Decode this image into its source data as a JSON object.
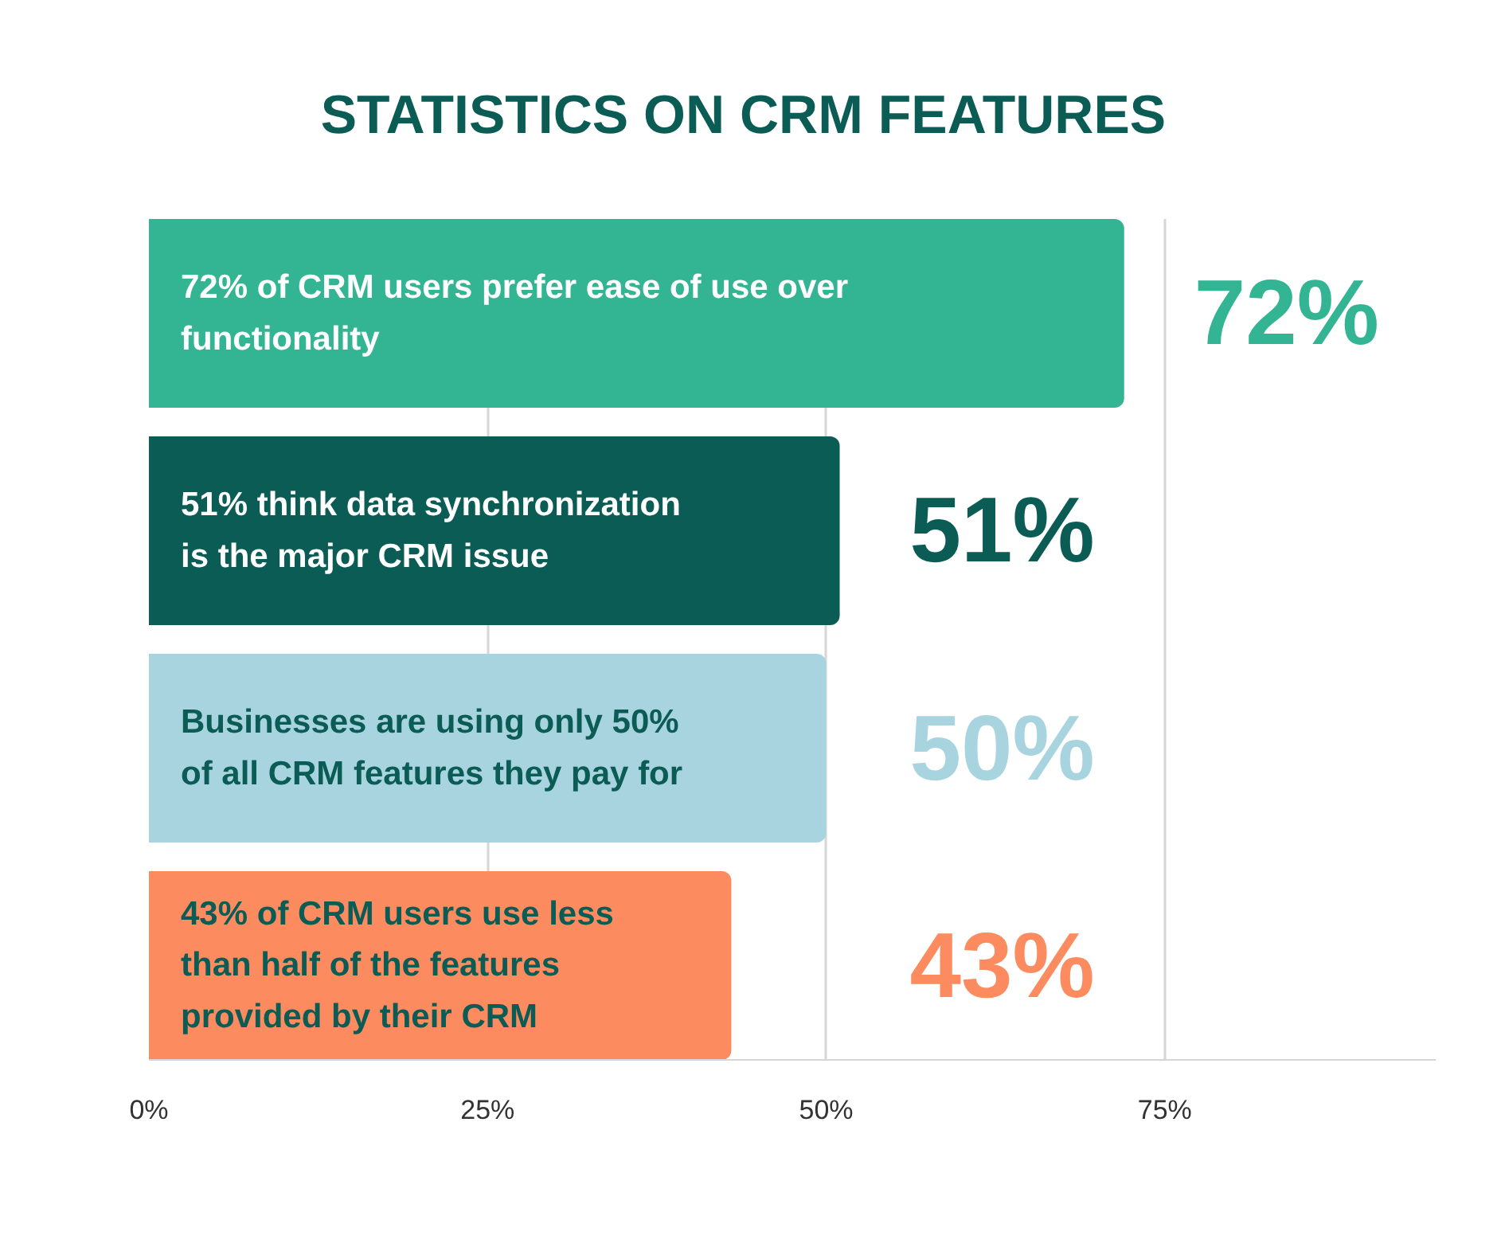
{
  "chart_data": {
    "type": "bar",
    "orientation": "horizontal",
    "title": "STATISTICS ON CRM FEATURES",
    "categories": [
      "72% of CRM users prefer ease of use over\nfunctionality",
      "51% think data synchronization\nis the major CRM issue",
      "Businesses are using only 50%\nof all CRM features they pay for",
      "43% of CRM users use less\nthan half of the features\nprovided by their CRM"
    ],
    "values": [
      72,
      51,
      50,
      43
    ],
    "colors": [
      "#33b593",
      "#0b5c55",
      "#a8d4e0",
      "#fc8b60"
    ],
    "value_labels": [
      "72%",
      "51%",
      "50%",
      "43%"
    ],
    "xlim": [
      0,
      95
    ],
    "xticks": [
      {
        "value": 0,
        "label": "0%"
      },
      {
        "value": 25,
        "label": "25%"
      },
      {
        "value": 50,
        "label": "50%"
      },
      {
        "value": 75,
        "label": "75%"
      }
    ],
    "grid": "x"
  }
}
